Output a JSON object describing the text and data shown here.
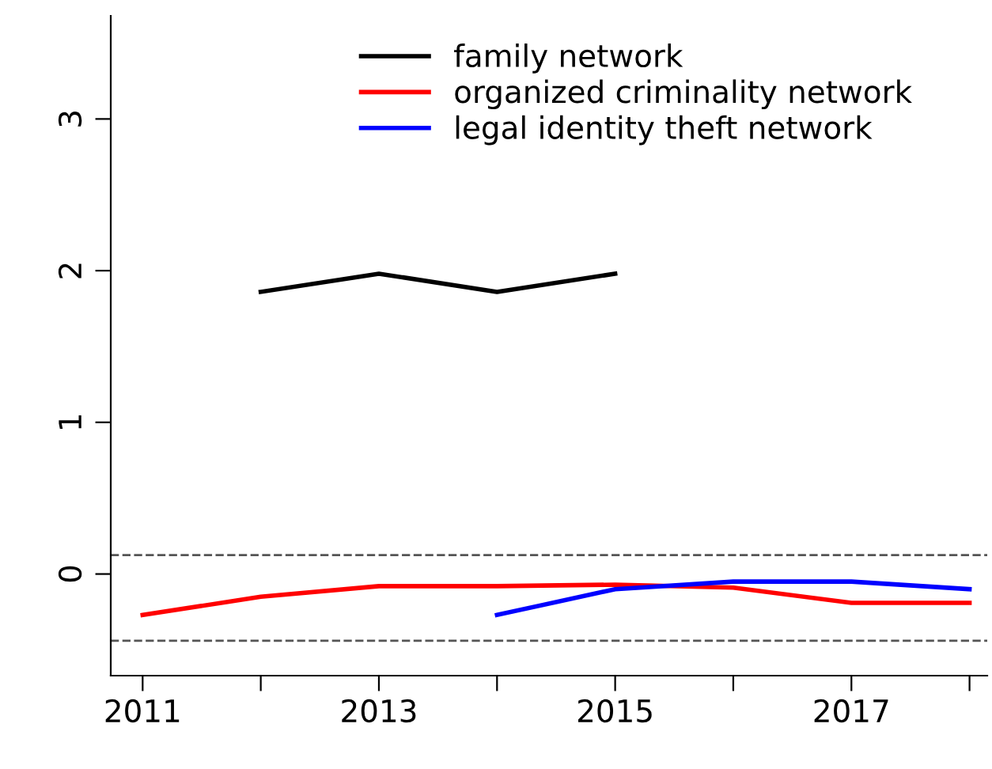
{
  "chart_data": {
    "type": "line",
    "x": [
      2011,
      2012,
      2013,
      2014,
      2015,
      2016,
      2017,
      2018
    ],
    "series": [
      {
        "name": "family network",
        "color": "#000000",
        "values": [
          null,
          1.86,
          1.98,
          1.86,
          1.98,
          null,
          null,
          null
        ]
      },
      {
        "name": "organized criminality network",
        "color": "#ff0000",
        "values": [
          -0.27,
          -0.15,
          -0.08,
          -0.08,
          -0.07,
          -0.09,
          -0.19,
          -0.19
        ]
      },
      {
        "name": "legal identity theft network",
        "color": "#0000ff",
        "values": [
          null,
          null,
          null,
          -0.27,
          -0.1,
          -0.05,
          -0.05,
          -0.1
        ]
      }
    ],
    "xlim": [
      2010.73,
      2018.15
    ],
    "ylim": [
      -0.67,
      3.68
    ],
    "xticks": [
      2011,
      {
        "value": 2012,
        "label": null
      },
      2013,
      {
        "value": 2014,
        "label": null
      },
      2015,
      {
        "value": 2016,
        "label": null
      },
      2017,
      {
        "value": 2018,
        "label": null
      }
    ],
    "yticks": [
      0,
      1,
      2,
      3
    ],
    "ref_lines": [
      {
        "axis": "y",
        "value": 0.125,
        "color": "#555555",
        "line_style": "dashed"
      },
      {
        "axis": "y",
        "value": -0.44,
        "color": "#555555",
        "line_style": "dashed"
      }
    ],
    "legend": "top",
    "grid": false,
    "marker": "none",
    "line_style": "solid"
  }
}
